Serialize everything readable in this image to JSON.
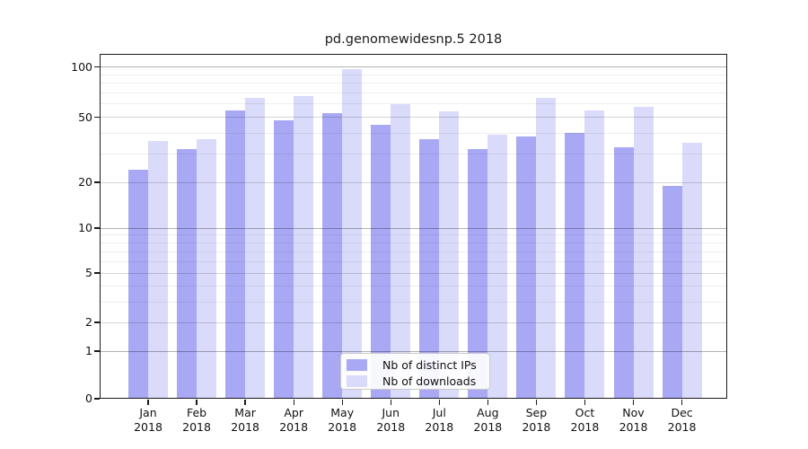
{
  "title": "pd.genomewidesnp.5 2018",
  "legend": {
    "items": [
      {
        "label": "Nb of distinct IPs",
        "color": "#a8a8f5"
      },
      {
        "label": "Nb of downloads",
        "color": "#dadafa"
      }
    ]
  },
  "chart_data": {
    "type": "bar",
    "title": "pd.genomewidesnp.5 2018",
    "categories": [
      "Jan",
      "Feb",
      "Mar",
      "Apr",
      "May",
      "Jun",
      "Jul",
      "Aug",
      "Sep",
      "Oct",
      "Nov",
      "Dec"
    ],
    "x_tick_second_line": "2018",
    "series": [
      {
        "name": "Nb of distinct IPs",
        "color": "#a8a8f5",
        "values": [
          24,
          32,
          55,
          48,
          53,
          45,
          37,
          32,
          38,
          40,
          33,
          19
        ]
      },
      {
        "name": "Nb of downloads",
        "color": "#dadafa",
        "values": [
          36,
          37,
          65,
          67,
          97,
          60,
          54,
          39,
          65,
          55,
          58,
          35
        ]
      }
    ],
    "y_axis": {
      "scale": "log1p",
      "ticks": [
        0,
        1,
        2,
        5,
        10,
        20,
        50,
        100
      ],
      "decade_ticks": [
        1,
        10,
        100
      ],
      "minor_ticks": [
        3,
        4,
        6,
        7,
        8,
        9,
        30,
        40,
        60,
        70,
        80,
        90
      ],
      "ylim": [
        0,
        110
      ]
    },
    "legend_position": "lower center",
    "grid": "on"
  }
}
